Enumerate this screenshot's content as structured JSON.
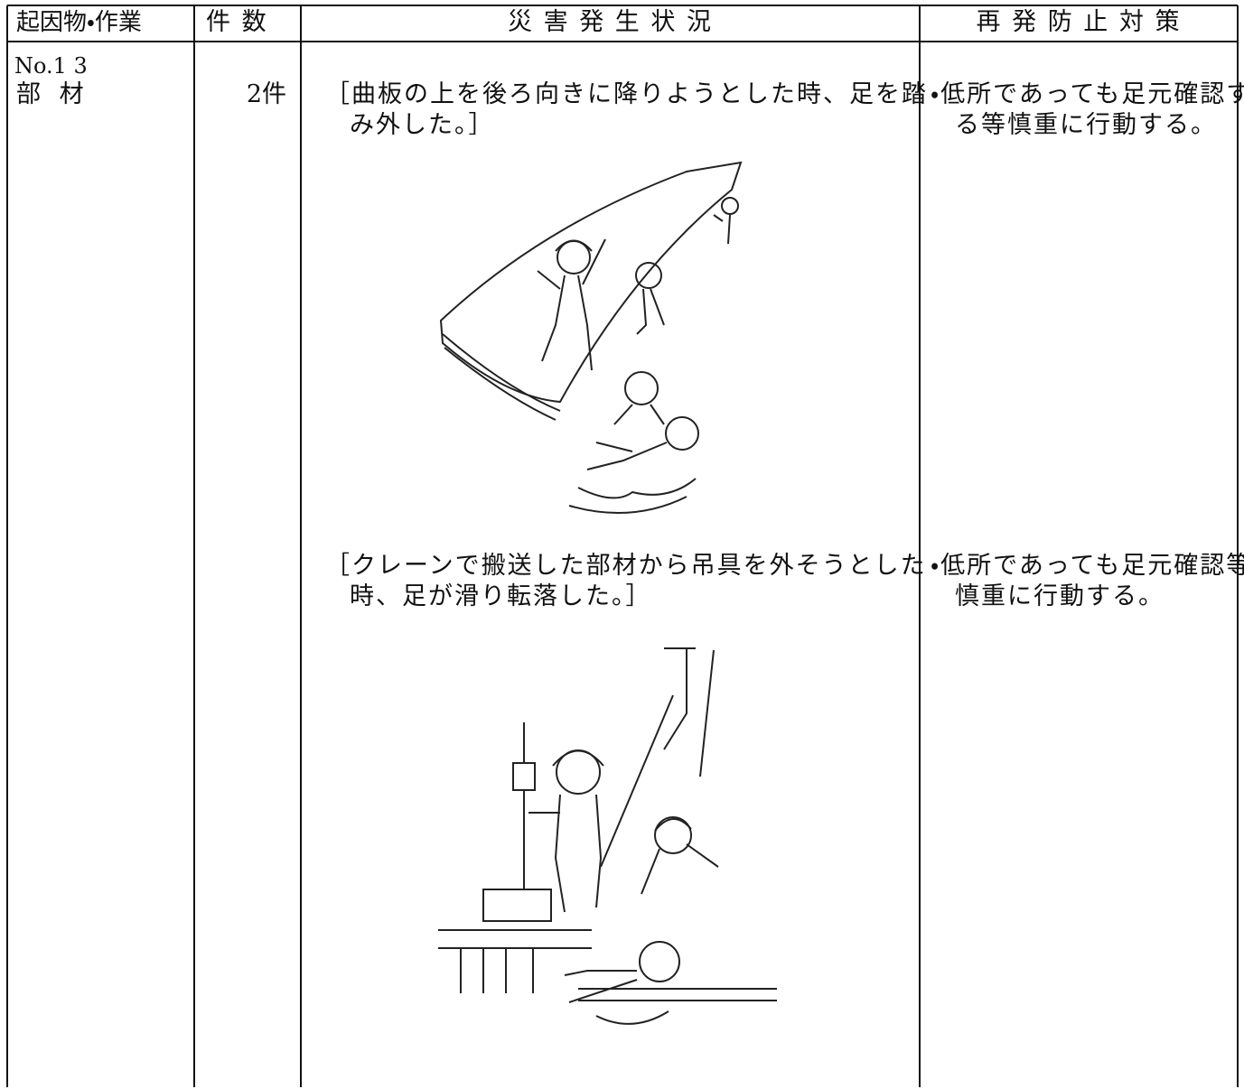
{
  "header": {
    "columns": [
      "起因物・作業",
      "件 数",
      "災 害 発 生 状 況",
      "再 発 防 止 対 策"
    ]
  },
  "row": {
    "number": "No.1 3",
    "item": "部 材",
    "count": "2件",
    "incidents": [
      {
        "situation": "［曲板の上を後ろ向きに降りようとした時、足を踏み外した。］",
        "countermeasure": "・低所であっても足元確認する等慎重に行動する。"
      },
      {
        "situation": "［クレーンで搬送した部材から吊具を外そうとした時、足が滑り転落した。］",
        "countermeasure": "・低所であっても足元確認等慎重に行動する。"
      }
    ]
  }
}
